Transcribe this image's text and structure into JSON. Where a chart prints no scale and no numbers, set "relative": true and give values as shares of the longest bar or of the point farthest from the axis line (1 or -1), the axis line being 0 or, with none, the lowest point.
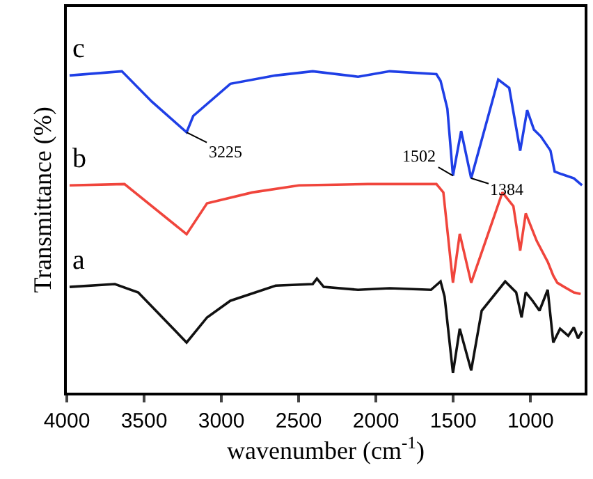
{
  "chart_data": {
    "type": "line",
    "relative": true,
    "xlabel": "wavenumber (cm$^{-1}$)",
    "ylabel": "Transmittance (%)",
    "xlim": [
      4000,
      650
    ],
    "xticks": [
      4000,
      3500,
      3000,
      2500,
      2000,
      1500,
      1000
    ],
    "grid": false,
    "legend": false,
    "marker": "none",
    "line_style": "solid",
    "series": [
      {
        "name": "c",
        "color": "#1f3fe6",
        "x": [
          3982,
          3644,
          3449,
          3225,
          3182,
          2942,
          2649,
          2409,
          2116,
          1911,
          1609,
          1582,
          1538,
          1502,
          1449,
          1384,
          1209,
          1138,
          1067,
          1022,
          978,
          933,
          871,
          844,
          800,
          720,
          667
        ],
        "values": [
          0.987,
          1,
          0.905,
          0.81,
          0.861,
          0.961,
          0.987,
          1,
          0.983,
          1,
          0.991,
          0.97,
          0.883,
          0.675,
          0.814,
          0.667,
          0.974,
          0.948,
          0.753,
          0.879,
          0.818,
          0.797,
          0.753,
          0.688,
          0.68,
          0.667,
          0.645
        ]
      },
      {
        "name": "b",
        "color": "#f0453c",
        "x": [
          3982,
          3627,
          3225,
          3093,
          2800,
          2498,
          2053,
          1609,
          1564,
          1502,
          1458,
          1384,
          1182,
          1111,
          1067,
          1031,
          960,
          889,
          853,
          827,
          782,
          720,
          676
        ],
        "values": [
          0.645,
          0.649,
          0.493,
          0.589,
          0.623,
          0.645,
          0.649,
          0.649,
          0.623,
          0.342,
          0.494,
          0.342,
          0.623,
          0.58,
          0.442,
          0.558,
          0.472,
          0.407,
          0.364,
          0.342,
          0.329,
          0.312,
          0.307
        ]
      },
      {
        "name": "a",
        "color": "#111111",
        "x": [
          3982,
          3689,
          3538,
          3225,
          3093,
          2942,
          2649,
          2409,
          2382,
          2338,
          2116,
          1911,
          1644,
          1582,
          1556,
          1502,
          1458,
          1384,
          1316,
          1164,
          1093,
          1058,
          1031,
          987,
          942,
          889,
          853,
          809,
          756,
          720,
          693,
          667
        ],
        "values": [
          0.329,
          0.338,
          0.312,
          0.156,
          0.234,
          0.286,
          0.333,
          0.338,
          0.355,
          0.329,
          0.32,
          0.325,
          0.32,
          0.346,
          0.299,
          0.061,
          0.199,
          0.069,
          0.255,
          0.346,
          0.312,
          0.234,
          0.312,
          0.286,
          0.255,
          0.32,
          0.156,
          0.199,
          0.177,
          0.203,
          0.169,
          0.19
        ]
      }
    ],
    "annotations": [
      {
        "text": "3225",
        "x": 3225,
        "y": 0.81
      },
      {
        "text": "1502",
        "x": 1502,
        "y": 0.675
      },
      {
        "text": "1384",
        "x": 1384,
        "y": 0.667
      }
    ]
  }
}
